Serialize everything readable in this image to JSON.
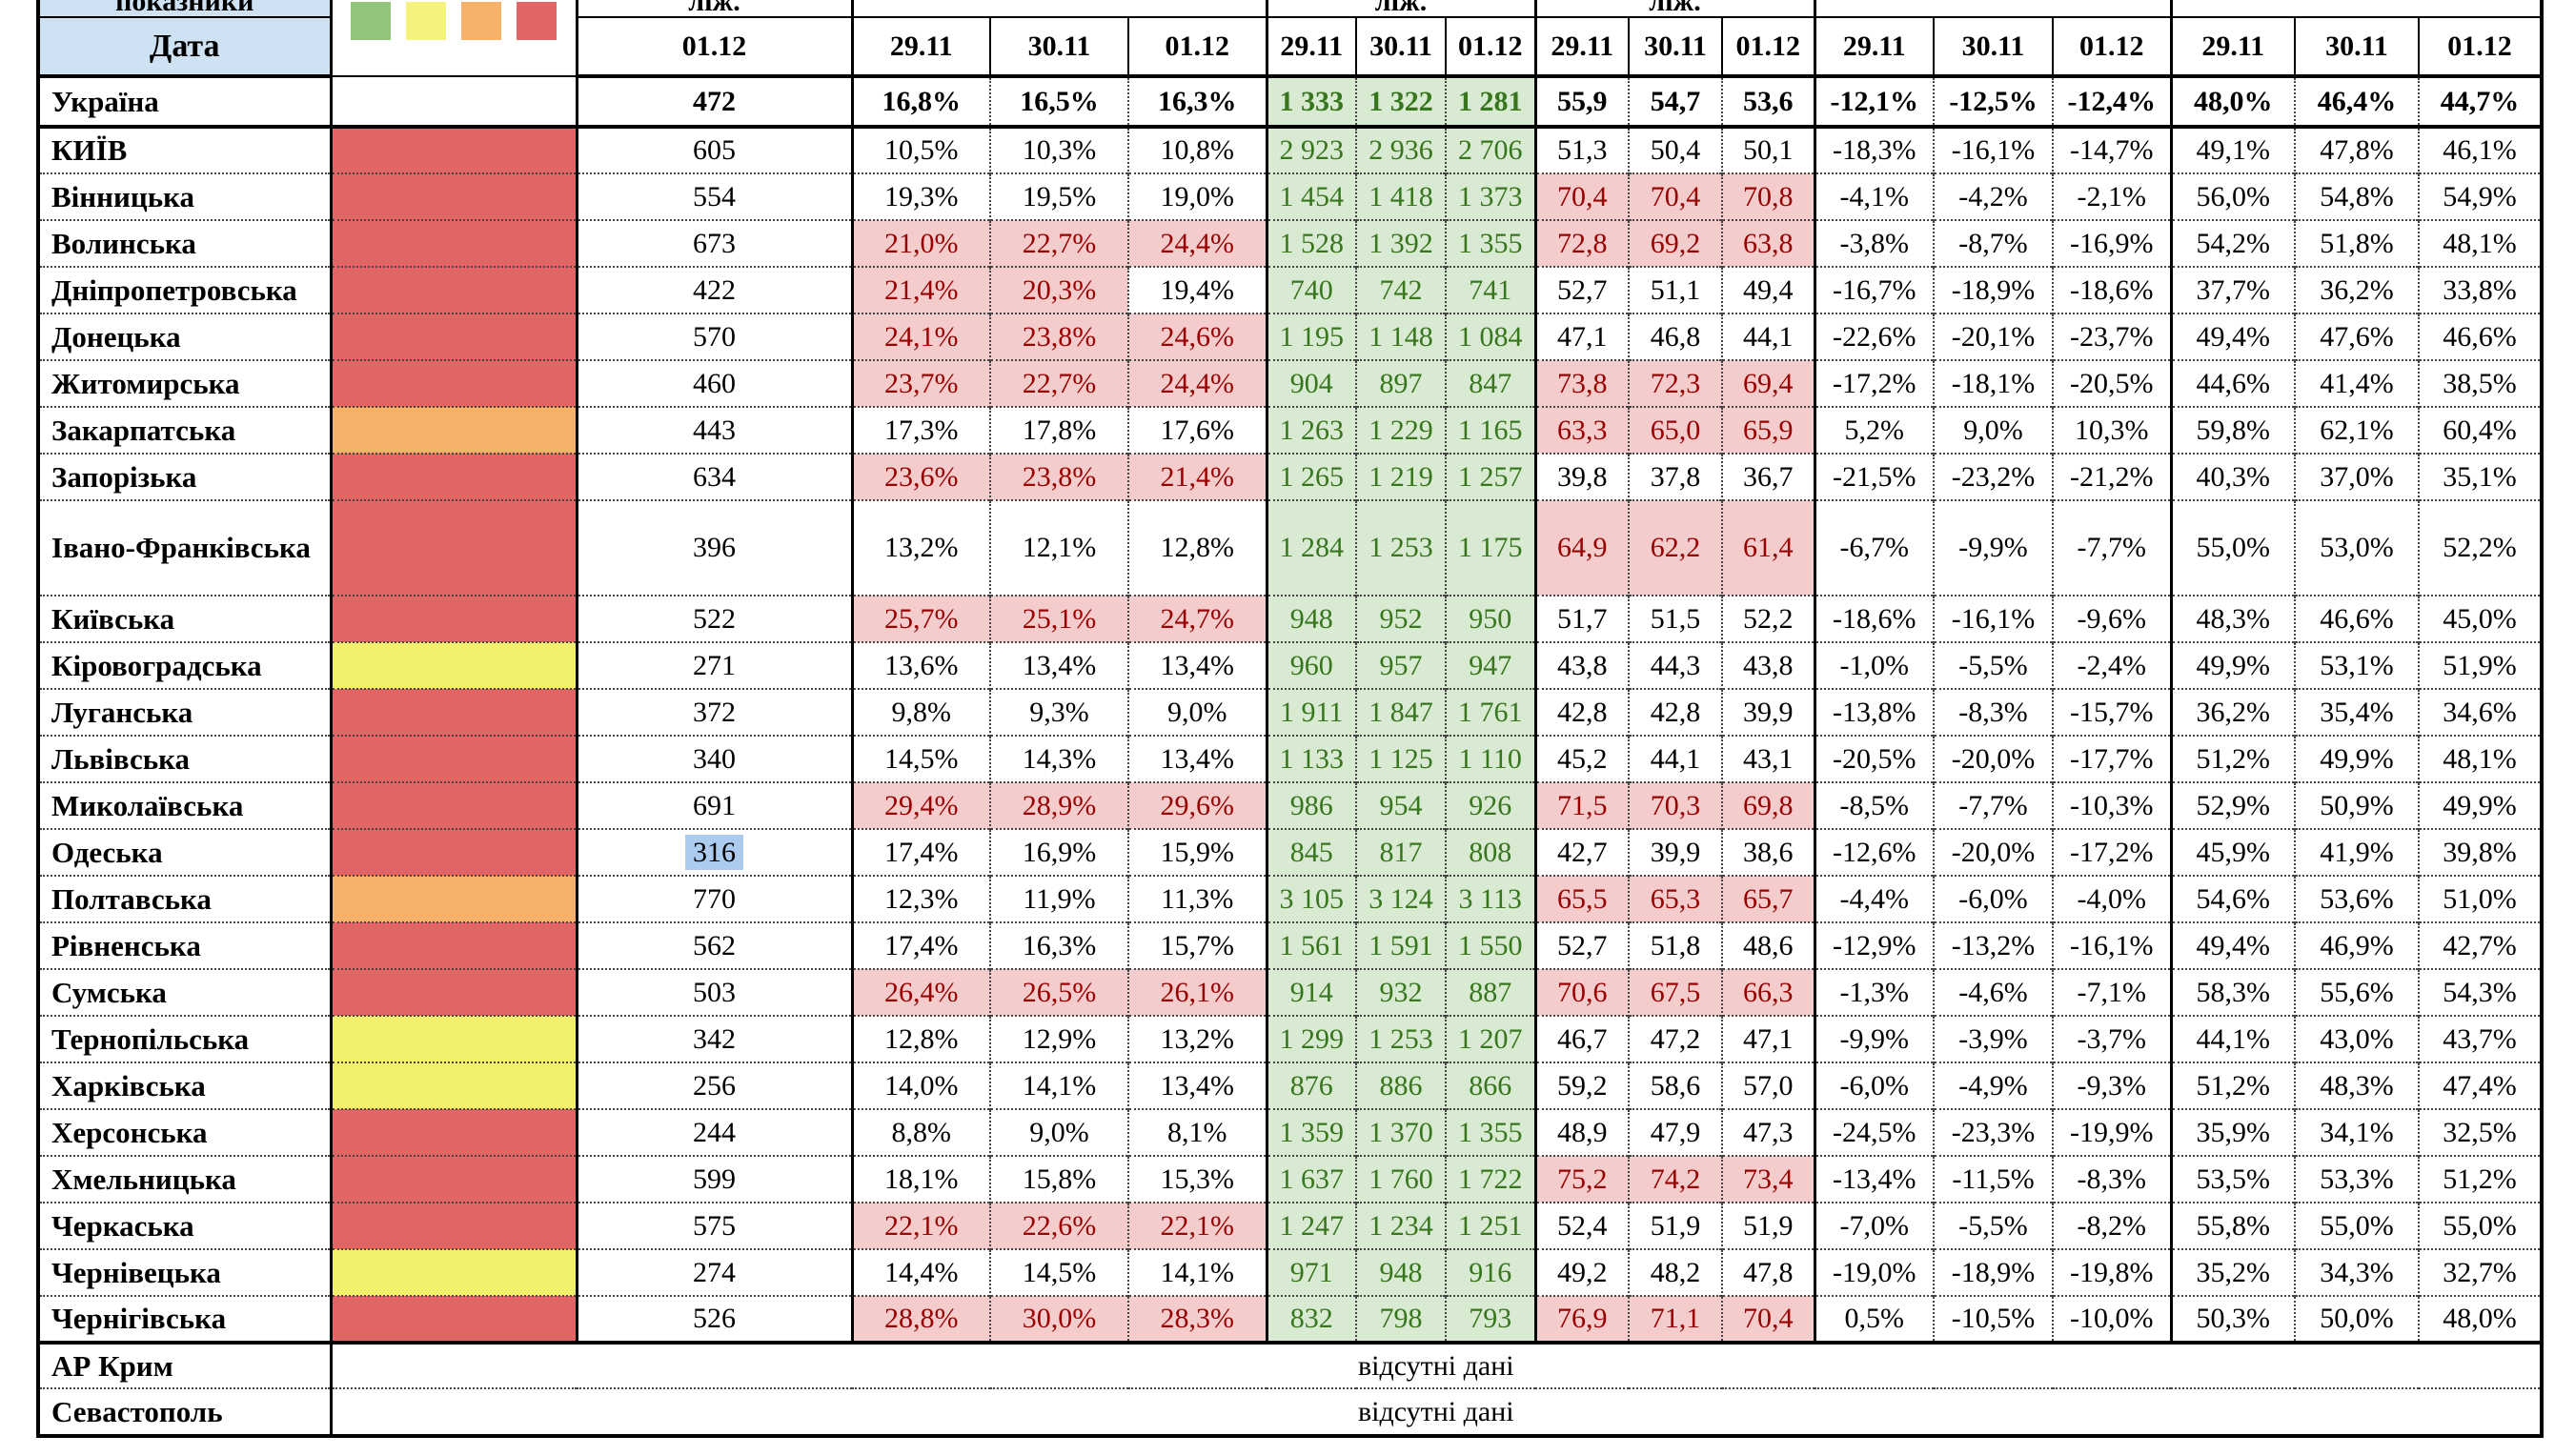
{
  "sheet": {
    "top_row": {
      "corner_fragment": "показники",
      "beds_fragment": "ліж.",
      "green_fragment": "ліж.",
      "num_fragment": "ліж."
    },
    "legend": {
      "colors": [
        "#93c47d",
        "#f3f37e",
        "#f6b26b",
        "#e06666"
      ]
    },
    "date_row": {
      "corner": "Дата",
      "beds": "01.12",
      "dates": [
        "29.11",
        "30.11",
        "01.12"
      ]
    },
    "totals_row": {
      "name": "Україна",
      "color": "none",
      "beds": "472",
      "beds_selected": false,
      "pct": [
        "16,8%",
        "16,5%",
        "16,3%"
      ],
      "pct_hot": [
        false,
        false,
        false
      ],
      "green": [
        "1 333",
        "1 322",
        "1 281"
      ],
      "num": [
        "55,9",
        "54,7",
        "53,6"
      ],
      "num_hot": [
        false,
        false,
        false
      ],
      "chg": [
        "-12,1%",
        "-12,5%",
        "-12,4%"
      ],
      "last": [
        "48,0%",
        "46,4%",
        "44,7%"
      ]
    },
    "rows": [
      {
        "name": "КИЇВ",
        "color": "red",
        "beds": "605",
        "beds_selected": false,
        "pct": [
          "10,5%",
          "10,3%",
          "10,8%"
        ],
        "pct_hot": [
          false,
          false,
          false
        ],
        "green": [
          "2 923",
          "2 936",
          "2 706"
        ],
        "num": [
          "51,3",
          "50,4",
          "50,1"
        ],
        "num_hot": [
          false,
          false,
          false
        ],
        "chg": [
          "-18,3%",
          "-16,1%",
          "-14,7%"
        ],
        "last": [
          "49,1%",
          "47,8%",
          "46,1%"
        ]
      },
      {
        "name": "Вінницька",
        "color": "red",
        "beds": "554",
        "beds_selected": false,
        "pct": [
          "19,3%",
          "19,5%",
          "19,0%"
        ],
        "pct_hot": [
          false,
          false,
          false
        ],
        "green": [
          "1 454",
          "1 418",
          "1 373"
        ],
        "num": [
          "70,4",
          "70,4",
          "70,8"
        ],
        "num_hot": [
          true,
          true,
          true
        ],
        "chg": [
          "-4,1%",
          "-4,2%",
          "-2,1%"
        ],
        "last": [
          "56,0%",
          "54,8%",
          "54,9%"
        ]
      },
      {
        "name": "Волинська",
        "color": "red",
        "beds": "673",
        "beds_selected": false,
        "pct": [
          "21,0%",
          "22,7%",
          "24,4%"
        ],
        "pct_hot": [
          true,
          true,
          true
        ],
        "green": [
          "1 528",
          "1 392",
          "1 355"
        ],
        "num": [
          "72,8",
          "69,2",
          "63,8"
        ],
        "num_hot": [
          true,
          true,
          true
        ],
        "chg": [
          "-3,8%",
          "-8,7%",
          "-16,9%"
        ],
        "last": [
          "54,2%",
          "51,8%",
          "48,1%"
        ]
      },
      {
        "name": "Дніпропетровська",
        "color": "red",
        "beds": "422",
        "beds_selected": false,
        "pct": [
          "21,4%",
          "20,3%",
          "19,4%"
        ],
        "pct_hot": [
          true,
          true,
          false
        ],
        "green": [
          "740",
          "742",
          "741"
        ],
        "num": [
          "52,7",
          "51,1",
          "49,4"
        ],
        "num_hot": [
          false,
          false,
          false
        ],
        "chg": [
          "-16,7%",
          "-18,9%",
          "-18,6%"
        ],
        "last": [
          "37,7%",
          "36,2%",
          "33,8%"
        ]
      },
      {
        "name": "Донецька",
        "color": "red",
        "beds": "570",
        "beds_selected": false,
        "pct": [
          "24,1%",
          "23,8%",
          "24,6%"
        ],
        "pct_hot": [
          true,
          true,
          true
        ],
        "green": [
          "1 195",
          "1 148",
          "1 084"
        ],
        "num": [
          "47,1",
          "46,8",
          "44,1"
        ],
        "num_hot": [
          false,
          false,
          false
        ],
        "chg": [
          "-22,6%",
          "-20,1%",
          "-23,7%"
        ],
        "last": [
          "49,4%",
          "47,6%",
          "46,6%"
        ]
      },
      {
        "name": "Житомирська",
        "color": "red",
        "beds": "460",
        "beds_selected": false,
        "pct": [
          "23,7%",
          "22,7%",
          "24,4%"
        ],
        "pct_hot": [
          true,
          true,
          true
        ],
        "green": [
          "904",
          "897",
          "847"
        ],
        "num": [
          "73,8",
          "72,3",
          "69,4"
        ],
        "num_hot": [
          true,
          true,
          true
        ],
        "chg": [
          "-17,2%",
          "-18,1%",
          "-20,5%"
        ],
        "last": [
          "44,6%",
          "41,4%",
          "38,5%"
        ]
      },
      {
        "name": "Закарпатська",
        "color": "orange",
        "beds": "443",
        "beds_selected": false,
        "pct": [
          "17,3%",
          "17,8%",
          "17,6%"
        ],
        "pct_hot": [
          false,
          false,
          false
        ],
        "green": [
          "1 263",
          "1 229",
          "1 165"
        ],
        "num": [
          "63,3",
          "65,0",
          "65,9"
        ],
        "num_hot": [
          true,
          true,
          true
        ],
        "chg": [
          "5,2%",
          "9,0%",
          "10,3%"
        ],
        "last": [
          "59,8%",
          "62,1%",
          "60,4%"
        ]
      },
      {
        "name": "Запорізька",
        "color": "red",
        "beds": "634",
        "beds_selected": false,
        "pct": [
          "23,6%",
          "23,8%",
          "21,4%"
        ],
        "pct_hot": [
          true,
          true,
          true
        ],
        "green": [
          "1 265",
          "1 219",
          "1 257"
        ],
        "num": [
          "39,8",
          "37,8",
          "36,7"
        ],
        "num_hot": [
          false,
          false,
          false
        ],
        "chg": [
          "-21,5%",
          "-23,2%",
          "-21,2%"
        ],
        "last": [
          "40,3%",
          "37,0%",
          "35,1%"
        ]
      },
      {
        "name": "Івано-Франківська",
        "color": "red",
        "beds": "396",
        "beds_selected": false,
        "tall": true,
        "pct": [
          "13,2%",
          "12,1%",
          "12,8%"
        ],
        "pct_hot": [
          false,
          false,
          false
        ],
        "green": [
          "1 284",
          "1 253",
          "1 175"
        ],
        "num": [
          "64,9",
          "62,2",
          "61,4"
        ],
        "num_hot": [
          true,
          true,
          true
        ],
        "chg": [
          "-6,7%",
          "-9,9%",
          "-7,7%"
        ],
        "last": [
          "55,0%",
          "53,0%",
          "52,2%"
        ]
      },
      {
        "name": "Київська",
        "color": "red",
        "beds": "522",
        "beds_selected": false,
        "pct": [
          "25,7%",
          "25,1%",
          "24,7%"
        ],
        "pct_hot": [
          true,
          true,
          true
        ],
        "green": [
          "948",
          "952",
          "950"
        ],
        "num": [
          "51,7",
          "51,5",
          "52,2"
        ],
        "num_hot": [
          false,
          false,
          false
        ],
        "chg": [
          "-18,6%",
          "-16,1%",
          "-9,6%"
        ],
        "last": [
          "48,3%",
          "46,6%",
          "45,0%"
        ]
      },
      {
        "name": "Кіровоградська",
        "color": "yellow",
        "beds": "271",
        "beds_selected": false,
        "pct": [
          "13,6%",
          "13,4%",
          "13,4%"
        ],
        "pct_hot": [
          false,
          false,
          false
        ],
        "green": [
          "960",
          "957",
          "947"
        ],
        "num": [
          "43,8",
          "44,3",
          "43,8"
        ],
        "num_hot": [
          false,
          false,
          false
        ],
        "chg": [
          "-1,0%",
          "-5,5%",
          "-2,4%"
        ],
        "last": [
          "49,9%",
          "53,1%",
          "51,9%"
        ]
      },
      {
        "name": "Луганська",
        "color": "red",
        "beds": "372",
        "beds_selected": false,
        "pct": [
          "9,8%",
          "9,3%",
          "9,0%"
        ],
        "pct_hot": [
          false,
          false,
          false
        ],
        "green": [
          "1 911",
          "1 847",
          "1 761"
        ],
        "num": [
          "42,8",
          "42,8",
          "39,9"
        ],
        "num_hot": [
          false,
          false,
          false
        ],
        "chg": [
          "-13,8%",
          "-8,3%",
          "-15,7%"
        ],
        "last": [
          "36,2%",
          "35,4%",
          "34,6%"
        ]
      },
      {
        "name": "Львівська",
        "color": "red",
        "beds": "340",
        "beds_selected": false,
        "pct": [
          "14,5%",
          "14,3%",
          "13,4%"
        ],
        "pct_hot": [
          false,
          false,
          false
        ],
        "green": [
          "1 133",
          "1 125",
          "1 110"
        ],
        "num": [
          "45,2",
          "44,1",
          "43,1"
        ],
        "num_hot": [
          false,
          false,
          false
        ],
        "chg": [
          "-20,5%",
          "-20,0%",
          "-17,7%"
        ],
        "last": [
          "51,2%",
          "49,9%",
          "48,1%"
        ]
      },
      {
        "name": "Миколаївська",
        "color": "red",
        "beds": "691",
        "beds_selected": false,
        "pct": [
          "29,4%",
          "28,9%",
          "29,6%"
        ],
        "pct_hot": [
          true,
          true,
          true
        ],
        "green": [
          "986",
          "954",
          "926"
        ],
        "num": [
          "71,5",
          "70,3",
          "69,8"
        ],
        "num_hot": [
          true,
          true,
          true
        ],
        "chg": [
          "-8,5%",
          "-7,7%",
          "-10,3%"
        ],
        "last": [
          "52,9%",
          "50,9%",
          "49,9%"
        ]
      },
      {
        "name": "Одеська",
        "color": "red",
        "beds": "316",
        "beds_selected": true,
        "pct": [
          "17,4%",
          "16,9%",
          "15,9%"
        ],
        "pct_hot": [
          false,
          false,
          false
        ],
        "green": [
          "845",
          "817",
          "808"
        ],
        "num": [
          "42,7",
          "39,9",
          "38,6"
        ],
        "num_hot": [
          false,
          false,
          false
        ],
        "chg": [
          "-12,6%",
          "-20,0%",
          "-17,2%"
        ],
        "last": [
          "45,9%",
          "41,9%",
          "39,8%"
        ]
      },
      {
        "name": "Полтавська",
        "color": "orange",
        "beds": "770",
        "beds_selected": false,
        "pct": [
          "12,3%",
          "11,9%",
          "11,3%"
        ],
        "pct_hot": [
          false,
          false,
          false
        ],
        "green": [
          "3 105",
          "3 124",
          "3 113"
        ],
        "num": [
          "65,5",
          "65,3",
          "65,7"
        ],
        "num_hot": [
          true,
          true,
          true
        ],
        "chg": [
          "-4,4%",
          "-6,0%",
          "-4,0%"
        ],
        "last": [
          "54,6%",
          "53,6%",
          "51,0%"
        ]
      },
      {
        "name": "Рівненська",
        "color": "red",
        "beds": "562",
        "beds_selected": false,
        "pct": [
          "17,4%",
          "16,3%",
          "15,7%"
        ],
        "pct_hot": [
          false,
          false,
          false
        ],
        "green": [
          "1 561",
          "1 591",
          "1 550"
        ],
        "num": [
          "52,7",
          "51,8",
          "48,6"
        ],
        "num_hot": [
          false,
          false,
          false
        ],
        "chg": [
          "-12,9%",
          "-13,2%",
          "-16,1%"
        ],
        "last": [
          "49,4%",
          "46,9%",
          "42,7%"
        ]
      },
      {
        "name": "Сумська",
        "color": "red",
        "beds": "503",
        "beds_selected": false,
        "pct": [
          "26,4%",
          "26,5%",
          "26,1%"
        ],
        "pct_hot": [
          true,
          true,
          true
        ],
        "green": [
          "914",
          "932",
          "887"
        ],
        "num": [
          "70,6",
          "67,5",
          "66,3"
        ],
        "num_hot": [
          true,
          true,
          true
        ],
        "chg": [
          "-1,3%",
          "-4,6%",
          "-7,1%"
        ],
        "last": [
          "58,3%",
          "55,6%",
          "54,3%"
        ]
      },
      {
        "name": "Тернопільська",
        "color": "yellow",
        "beds": "342",
        "beds_selected": false,
        "pct": [
          "12,8%",
          "12,9%",
          "13,2%"
        ],
        "pct_hot": [
          false,
          false,
          false
        ],
        "green": [
          "1 299",
          "1 253",
          "1 207"
        ],
        "num": [
          "46,7",
          "47,2",
          "47,1"
        ],
        "num_hot": [
          false,
          false,
          false
        ],
        "chg": [
          "-9,9%",
          "-3,9%",
          "-3,7%"
        ],
        "last": [
          "44,1%",
          "43,0%",
          "43,7%"
        ]
      },
      {
        "name": "Харківська",
        "color": "yellow",
        "beds": "256",
        "beds_selected": false,
        "pct": [
          "14,0%",
          "14,1%",
          "13,4%"
        ],
        "pct_hot": [
          false,
          false,
          false
        ],
        "green": [
          "876",
          "886",
          "866"
        ],
        "num": [
          "59,2",
          "58,6",
          "57,0"
        ],
        "num_hot": [
          false,
          false,
          false
        ],
        "chg": [
          "-6,0%",
          "-4,9%",
          "-9,3%"
        ],
        "last": [
          "51,2%",
          "48,3%",
          "47,4%"
        ]
      },
      {
        "name": "Херсонська",
        "color": "red",
        "beds": "244",
        "beds_selected": false,
        "pct": [
          "8,8%",
          "9,0%",
          "8,1%"
        ],
        "pct_hot": [
          false,
          false,
          false
        ],
        "green": [
          "1 359",
          "1 370",
          "1 355"
        ],
        "num": [
          "48,9",
          "47,9",
          "47,3"
        ],
        "num_hot": [
          false,
          false,
          false
        ],
        "chg": [
          "-24,5%",
          "-23,3%",
          "-19,9%"
        ],
        "last": [
          "35,9%",
          "34,1%",
          "32,5%"
        ]
      },
      {
        "name": "Хмельницька",
        "color": "red",
        "beds": "599",
        "beds_selected": false,
        "pct": [
          "18,1%",
          "15,8%",
          "15,3%"
        ],
        "pct_hot": [
          false,
          false,
          false
        ],
        "green": [
          "1 637",
          "1 760",
          "1 722"
        ],
        "num": [
          "75,2",
          "74,2",
          "73,4"
        ],
        "num_hot": [
          true,
          true,
          true
        ],
        "chg": [
          "-13,4%",
          "-11,5%",
          "-8,3%"
        ],
        "last": [
          "53,5%",
          "53,3%",
          "51,2%"
        ]
      },
      {
        "name": "Черкаська",
        "color": "red",
        "beds": "575",
        "beds_selected": false,
        "pct": [
          "22,1%",
          "22,6%",
          "22,1%"
        ],
        "pct_hot": [
          true,
          true,
          true
        ],
        "green": [
          "1 247",
          "1 234",
          "1 251"
        ],
        "num": [
          "52,4",
          "51,9",
          "51,9"
        ],
        "num_hot": [
          false,
          false,
          false
        ],
        "chg": [
          "-7,0%",
          "-5,5%",
          "-8,2%"
        ],
        "last": [
          "55,8%",
          "55,0%",
          "55,0%"
        ]
      },
      {
        "name": "Чернівецька",
        "color": "yellow",
        "beds": "274",
        "beds_selected": false,
        "pct": [
          "14,4%",
          "14,5%",
          "14,1%"
        ],
        "pct_hot": [
          false,
          false,
          false
        ],
        "green": [
          "971",
          "948",
          "916"
        ],
        "num": [
          "49,2",
          "48,2",
          "47,8"
        ],
        "num_hot": [
          false,
          false,
          false
        ],
        "chg": [
          "-19,0%",
          "-18,9%",
          "-19,8%"
        ],
        "last": [
          "35,2%",
          "34,3%",
          "32,7%"
        ]
      },
      {
        "name": "Чернігівська",
        "color": "red",
        "beds": "526",
        "beds_selected": false,
        "pct": [
          "28,8%",
          "30,0%",
          "28,3%"
        ],
        "pct_hot": [
          true,
          true,
          true
        ],
        "green": [
          "832",
          "798",
          "793"
        ],
        "num": [
          "76,9",
          "71,1",
          "70,4"
        ],
        "num_hot": [
          true,
          true,
          true
        ],
        "chg": [
          "0,5%",
          "-10,5%",
          "-10,0%"
        ],
        "last": [
          "50,3%",
          "50,0%",
          "48,0%"
        ]
      }
    ],
    "no_data": {
      "label": "відсутні дані",
      "rows": [
        "АР Крим",
        "Севастополь"
      ]
    },
    "colors": {
      "header_bg": "#cfe2f3",
      "hot_bg": "#f4cccc",
      "hot_text": "#990000",
      "green_bg": "#d9ead3",
      "green_text": "#38761d",
      "selected_bg": "#abcbef",
      "swatch_red": "#e06666",
      "swatch_orange": "#f6b26b",
      "swatch_yellow": "#f1f06e",
      "swatch_green": "#93c47d"
    }
  }
}
